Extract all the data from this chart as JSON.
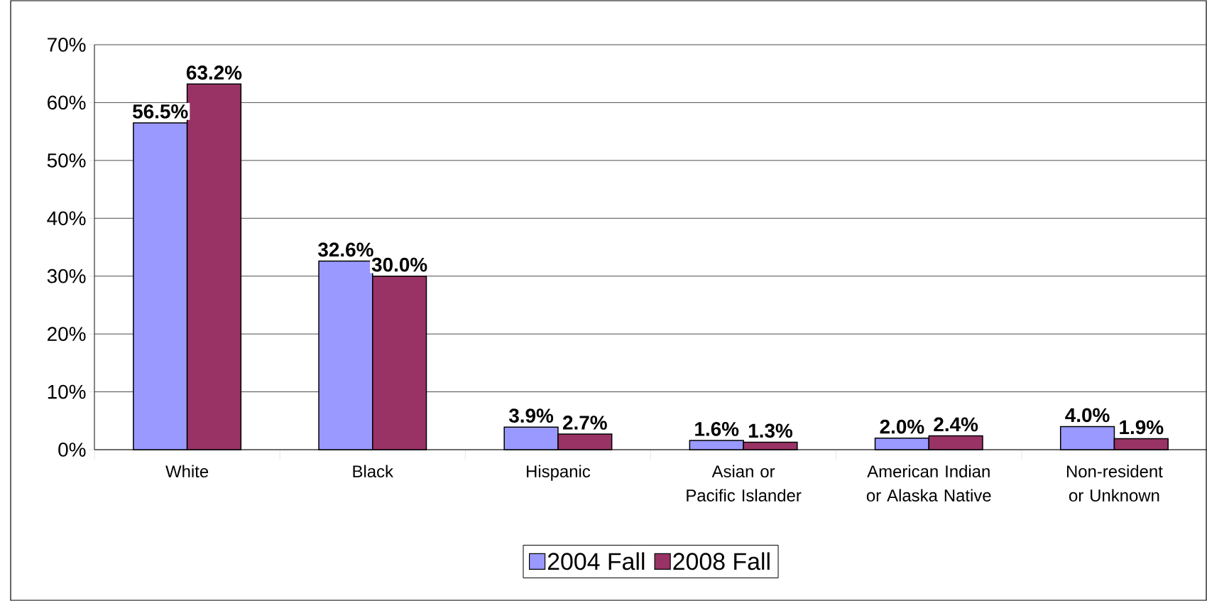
{
  "chart_data": {
    "type": "bar",
    "categories": [
      "White",
      "Black",
      "Hispanic",
      "Asian or Pacific Islander",
      "American Indian or Alaska Native",
      "Non-resident or Unknown"
    ],
    "series": [
      {
        "name": "2004 Fall",
        "color": "#9999ff",
        "values": [
          56.5,
          32.6,
          3.9,
          1.6,
          2.0,
          4.0
        ],
        "value_labels": [
          "56.5%",
          "32.6%",
          "3.9%",
          "1.6%",
          "2.0%",
          "4.0%"
        ]
      },
      {
        "name": "2008 Fall",
        "color": "#993366",
        "values": [
          63.2,
          30.0,
          2.7,
          1.3,
          2.4,
          1.9
        ],
        "value_labels": [
          "63.2%",
          "30.0%",
          "2.7%",
          "1.3%",
          "2.4%",
          "1.9%"
        ]
      }
    ],
    "ylim": [
      0,
      70
    ],
    "yticks": [
      {
        "value": 0,
        "label": "0%"
      },
      {
        "value": 10,
        "label": "10%"
      },
      {
        "value": 20,
        "label": "20%"
      },
      {
        "value": 30,
        "label": "30%"
      },
      {
        "value": 40,
        "label": "40%"
      },
      {
        "value": 50,
        "label": "50%"
      },
      {
        "value": 60,
        "label": "60%"
      },
      {
        "value": 70,
        "label": "70%"
      }
    ],
    "grid": "y",
    "legend": "bottom"
  }
}
